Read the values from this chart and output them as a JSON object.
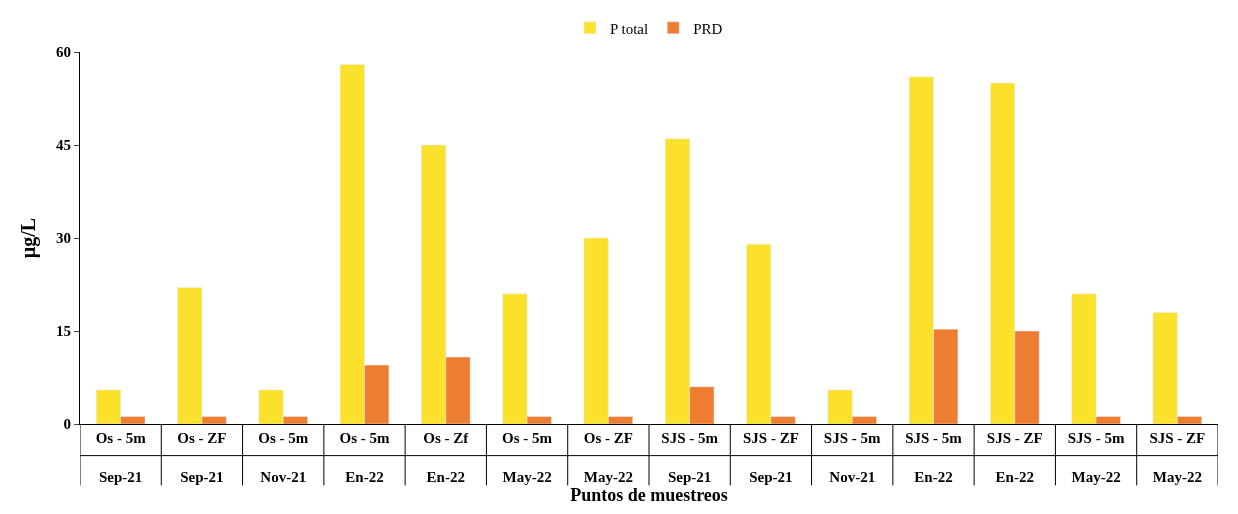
{
  "chart_data": {
    "type": "bar",
    "xlabel": "Puntos de muestreos",
    "ylabel": "µg/L",
    "categories": [
      "Os - 5m\nSep-21",
      "Os - ZF\nSep-21",
      "Os - 5m\nNov-21",
      "Os - 5m\nEn-22",
      "Os - Zf\nEn-22",
      "Os - 5m\nMay-22",
      "Os - ZF\nMay-22",
      "SJS - 5m\nSep-21",
      "SJS - ZF\nSep-21",
      "SJS - 5m\nNov-21",
      "SJS - 5m\nEn-22",
      "SJS - ZF\nEn-22",
      "SJS - 5m\nMay-22",
      "SJS - ZF\nMay-22"
    ],
    "series": [
      {
        "name": "P total",
        "color": "#fbe12b",
        "values": [
          5.5,
          22,
          5.5,
          58,
          45,
          21,
          30,
          46,
          29,
          5.5,
          56,
          55,
          21,
          18
        ]
      },
      {
        "name": "PRD",
        "color": "#ed7d31",
        "values": [
          1.2,
          1.2,
          1.2,
          9.5,
          10.8,
          1.2,
          1.2,
          6,
          1.2,
          1.2,
          15.3,
          15,
          1.2,
          1.2
        ]
      }
    ],
    "ylim": [
      0,
      60
    ],
    "yticks": [
      0,
      15,
      30,
      45,
      60
    ],
    "legend": "top"
  }
}
